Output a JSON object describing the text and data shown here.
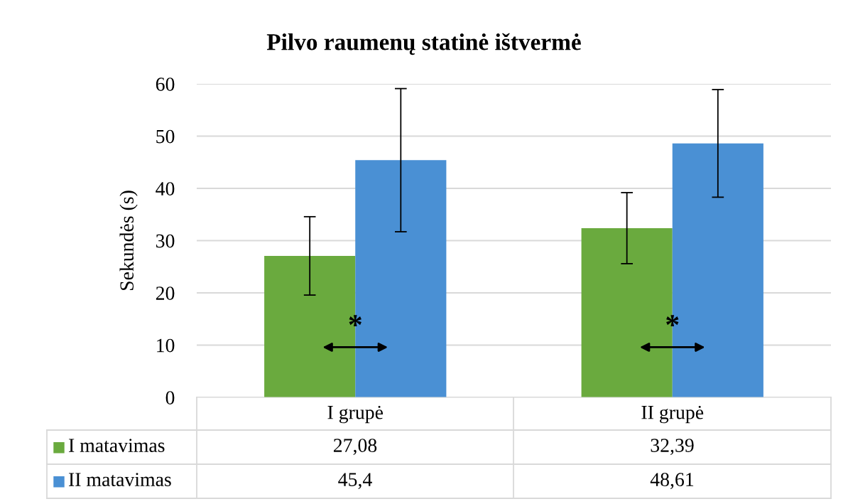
{
  "chart_data": {
    "type": "bar",
    "title": "Pilvo raumenų statinė ištvermė",
    "ylabel": "Sekundės (s)",
    "categories": [
      "I grupė",
      "II grupė"
    ],
    "series": [
      {
        "name": "I matavimas",
        "color": "#6aaa3e",
        "values": [
          27.08,
          32.39
        ],
        "errors": [
          7.5,
          6.8
        ],
        "value_labels": [
          "27,08",
          "32,39"
        ]
      },
      {
        "name": "II matavimas",
        "color": "#4a90d4",
        "values": [
          45.4,
          48.61
        ],
        "errors": [
          13.7,
          10.3
        ],
        "value_labels": [
          "45,4",
          "48,61"
        ]
      }
    ],
    "ylim": [
      0,
      60
    ],
    "yticks": [
      0,
      10,
      20,
      30,
      40,
      50,
      60
    ],
    "grid": "y",
    "legend": "bottom",
    "annotations": [
      "*",
      "*"
    ]
  }
}
